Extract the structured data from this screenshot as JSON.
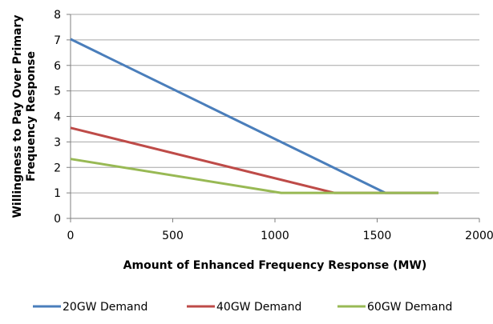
{
  "chart_data": {
    "type": "line",
    "title": "",
    "xlabel": "Amount of Enhanced Frequency Response  (MW)",
    "ylabel": "Willingness  to Pay Over Primary Frequency Response",
    "xlim": [
      0,
      2000
    ],
    "ylim": [
      0,
      8
    ],
    "x_ticks": [
      "0",
      "500",
      "1000",
      "1500",
      "2000"
    ],
    "y_ticks": [
      "0",
      "1",
      "2",
      "3",
      "4",
      "5",
      "6",
      "7",
      "8"
    ],
    "grid": "horizontal",
    "legend_position": "bottom",
    "series": [
      {
        "name": "20GW Demand",
        "color": "#4a7ebb",
        "points": [
          [
            0,
            7.03
          ],
          [
            1540,
            1.0
          ],
          [
            1800,
            1.0
          ]
        ]
      },
      {
        "name": "40GW Demand",
        "color": "#be4b48",
        "points": [
          [
            0,
            3.55
          ],
          [
            1290,
            1.0
          ],
          [
            1800,
            1.0
          ]
        ]
      },
      {
        "name": "60GW Demand",
        "color": "#98b954",
        "points": [
          [
            0,
            2.33
          ],
          [
            1030,
            1.0
          ],
          [
            1800,
            1.0
          ]
        ]
      }
    ]
  }
}
